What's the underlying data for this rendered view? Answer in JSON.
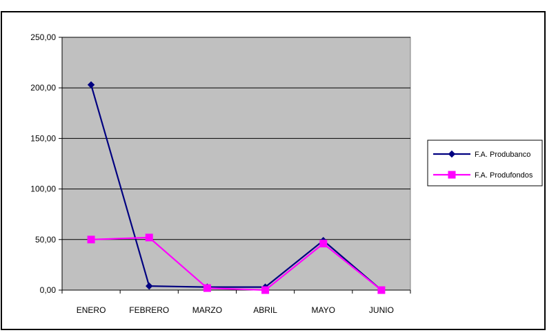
{
  "chart_data": {
    "type": "line",
    "categories": [
      "ENERO",
      "FEBRERO",
      "MARZO",
      "ABRIL",
      "MAYO",
      "JUNIO"
    ],
    "series": [
      {
        "name": "F.A. Produbanco",
        "values": [
          203,
          4,
          3,
          3,
          49,
          0
        ],
        "color": "#000080",
        "marker": "diamond"
      },
      {
        "name": "F.A. Produfondos",
        "values": [
          50,
          52,
          2,
          0,
          46,
          0
        ],
        "color": "#ff00ff",
        "marker": "square"
      }
    ],
    "y_ticks": [
      "0,00",
      "50,00",
      "100,00",
      "150,00",
      "200,00",
      "250,00"
    ],
    "ylim": [
      0,
      250
    ],
    "grid": true,
    "plot_background": "#c0c0c0",
    "legend_position": "right"
  }
}
